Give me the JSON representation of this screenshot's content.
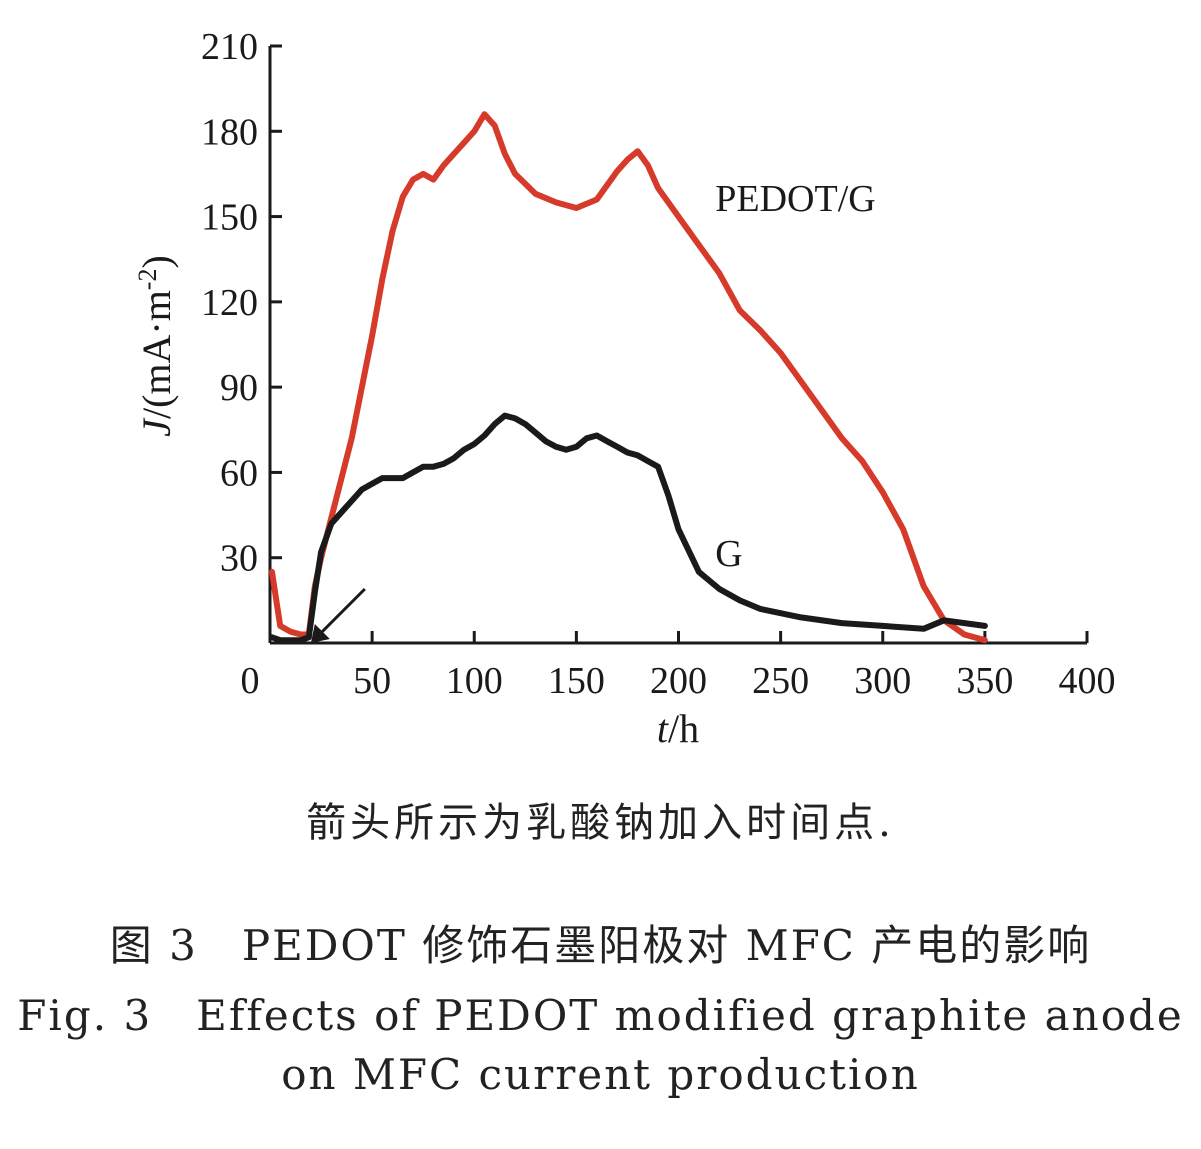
{
  "chart_data": {
    "type": "line",
    "xlabel_italic": "t",
    "xlabel_rest": "/h",
    "ylabel_italic": "J",
    "ylabel_rest": "/(mA·m",
    "ylabel_sup": "-2",
    "ylabel_close": ")",
    "xlim": [
      0,
      400
    ],
    "ylim": [
      0,
      210
    ],
    "xticks": [
      0,
      50,
      100,
      150,
      200,
      250,
      300,
      350,
      400
    ],
    "yticks": [
      30,
      60,
      90,
      120,
      150,
      180,
      210
    ],
    "grid": false,
    "arrow_at": {
      "x": 20,
      "y": 0
    },
    "series": [
      {
        "name": "PEDOT/G",
        "color": "#d63a2a",
        "label_at": {
          "x": 218,
          "y": 152
        },
        "x": [
          1,
          5,
          10,
          15,
          19,
          22,
          25,
          30,
          35,
          40,
          45,
          50,
          55,
          60,
          65,
          70,
          75,
          80,
          85,
          90,
          95,
          100,
          105,
          110,
          115,
          120,
          130,
          140,
          150,
          160,
          170,
          175,
          180,
          185,
          190,
          200,
          210,
          220,
          230,
          240,
          250,
          260,
          270,
          280,
          290,
          300,
          310,
          320,
          330,
          340,
          350
        ],
        "y": [
          25,
          6,
          4,
          3,
          3,
          20,
          30,
          44,
          58,
          72,
          90,
          108,
          128,
          145,
          157,
          163,
          165,
          163,
          168,
          172,
          176,
          180,
          186,
          182,
          172,
          165,
          158,
          155,
          153,
          156,
          166,
          170,
          173,
          168,
          160,
          150,
          140,
          130,
          117,
          110,
          102,
          92,
          82,
          72,
          64,
          53,
          40,
          20,
          8,
          3,
          1
        ]
      },
      {
        "name": "G",
        "color": "#1a1a1a",
        "label_at": {
          "x": 218,
          "y": 27
        },
        "x": [
          1,
          5,
          10,
          15,
          19,
          22,
          25,
          30,
          35,
          40,
          45,
          50,
          55,
          60,
          65,
          70,
          75,
          80,
          85,
          90,
          95,
          100,
          105,
          110,
          115,
          120,
          125,
          130,
          135,
          140,
          145,
          150,
          155,
          160,
          165,
          170,
          175,
          180,
          185,
          190,
          195,
          200,
          210,
          220,
          230,
          240,
          260,
          280,
          300,
          320,
          330,
          340,
          350
        ],
        "y": [
          2,
          1,
          1,
          1,
          2,
          18,
          32,
          42,
          46,
          50,
          54,
          56,
          58,
          58,
          58,
          60,
          62,
          62,
          63,
          65,
          68,
          70,
          73,
          77,
          80,
          79,
          77,
          74,
          71,
          69,
          68,
          69,
          72,
          73,
          71,
          69,
          67,
          66,
          64,
          62,
          52,
          40,
          25,
          19,
          15,
          12,
          9,
          7,
          6,
          5,
          8,
          7,
          6
        ]
      }
    ]
  },
  "captions": {
    "note": "箭头所示为乳酸钠加入时间点.",
    "title_cn": "图 3　PEDOT 修饰石墨阳极对 MFC 产电的影响",
    "title_en_line1": "Fig. 3　Effects of PEDOT modified graphite anode",
    "title_en_line2": "on MFC current production"
  }
}
